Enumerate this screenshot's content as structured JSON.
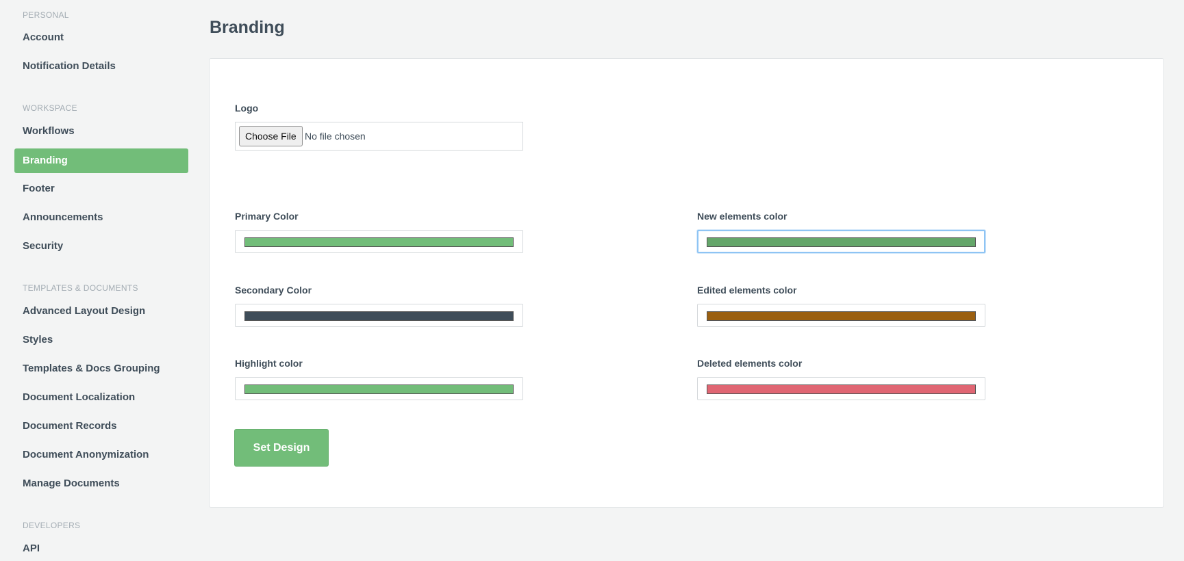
{
  "sidebar": {
    "sections": [
      {
        "title": "PERSONAL",
        "items": [
          {
            "label": "Account"
          },
          {
            "label": "Notification Details"
          }
        ]
      },
      {
        "title": "WORKSPACE",
        "items": [
          {
            "label": "Workflows"
          },
          {
            "label": "Branding"
          },
          {
            "label": "Footer"
          },
          {
            "label": "Announcements"
          },
          {
            "label": "Security"
          }
        ]
      },
      {
        "title": "TEMPLATES & DOCUMENTS",
        "items": [
          {
            "label": "Advanced Layout Design"
          },
          {
            "label": "Styles"
          },
          {
            "label": "Templates & Docs Grouping"
          },
          {
            "label": "Document Localization"
          },
          {
            "label": "Document Records"
          },
          {
            "label": "Document Anonymization"
          },
          {
            "label": "Manage Documents"
          }
        ]
      },
      {
        "title": "DEVELOPERS",
        "items": [
          {
            "label": "API"
          }
        ]
      }
    ],
    "active_item": "Branding"
  },
  "page": {
    "title": "Branding"
  },
  "form": {
    "logo": {
      "label": "Logo",
      "button_label": "Choose File",
      "status": "No file chosen"
    },
    "colors": {
      "primary": {
        "label": "Primary Color",
        "value": "#72bd79"
      },
      "secondary": {
        "label": "Secondary Color",
        "value": "#3f4d59"
      },
      "highlight": {
        "label": "Highlight color",
        "value": "#72bd79"
      },
      "new_elements": {
        "label": "New elements color",
        "value": "#64a66a"
      },
      "edited_elements": {
        "label": "Edited elements color",
        "value": "#9a5f10"
      },
      "deleted_elements": {
        "label": "Deleted elements color",
        "value": "#e06673"
      }
    },
    "submit_label": "Set Design"
  }
}
